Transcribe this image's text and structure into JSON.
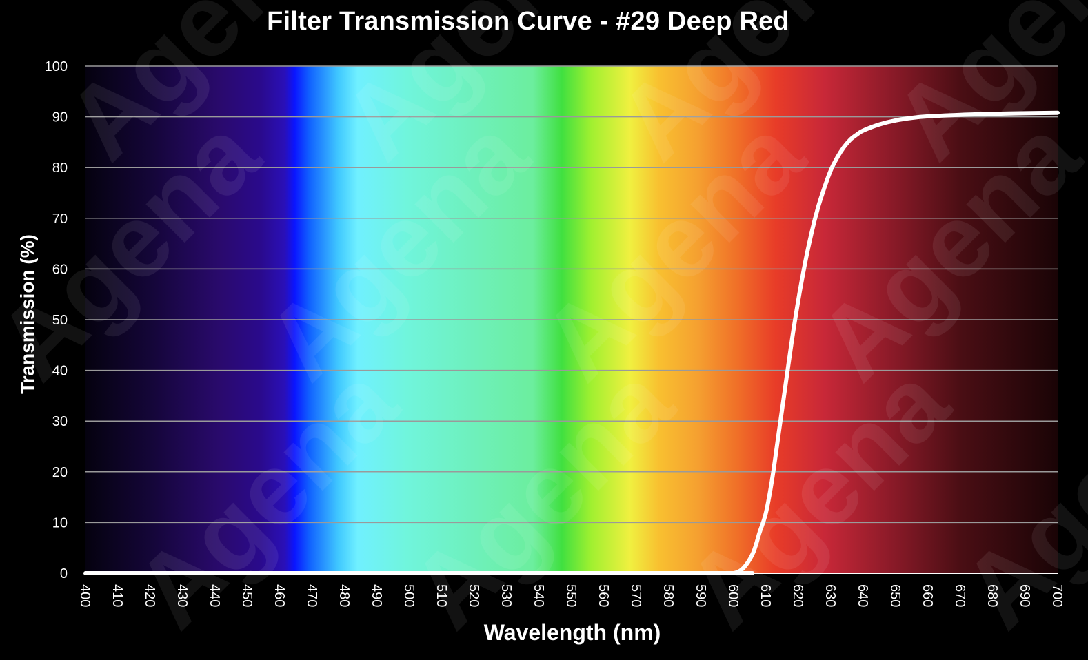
{
  "chart_data": {
    "type": "line",
    "title": "Filter Transmission Curve - #29 Deep Red",
    "xlabel": "Wavelength (nm)",
    "ylabel": "Transmission (%)",
    "xlim": [
      400,
      700
    ],
    "ylim": [
      0,
      100
    ],
    "x_ticks": [
      400,
      410,
      420,
      430,
      440,
      450,
      460,
      470,
      480,
      490,
      500,
      510,
      520,
      530,
      540,
      550,
      560,
      570,
      580,
      590,
      600,
      610,
      620,
      630,
      640,
      650,
      660,
      670,
      680,
      690,
      700
    ],
    "y_ticks": [
      0,
      10,
      20,
      30,
      40,
      50,
      60,
      70,
      80,
      90,
      100
    ],
    "grid": "horizontal",
    "background": "visible-spectrum",
    "watermark": "Agena",
    "series": [
      {
        "name": "#29 Deep Red",
        "color": "#ffffff",
        "x": [
          400,
          590,
          596,
          600,
          603,
          606,
          608,
          610,
          612,
          614,
          616,
          618,
          620,
          622,
          624,
          626,
          628,
          630,
          632,
          634,
          636,
          638,
          640,
          645,
          650,
          655,
          660,
          670,
          680,
          690,
          700
        ],
        "y": [
          0,
          0,
          0,
          0,
          1,
          4,
          8,
          12,
          19,
          28,
          37,
          46,
          54,
          61,
          67,
          72,
          76,
          79.5,
          82,
          84,
          85.5,
          86.5,
          87.3,
          88.5,
          89.3,
          89.8,
          90.1,
          90.4,
          90.6,
          90.7,
          90.8
        ]
      }
    ]
  }
}
